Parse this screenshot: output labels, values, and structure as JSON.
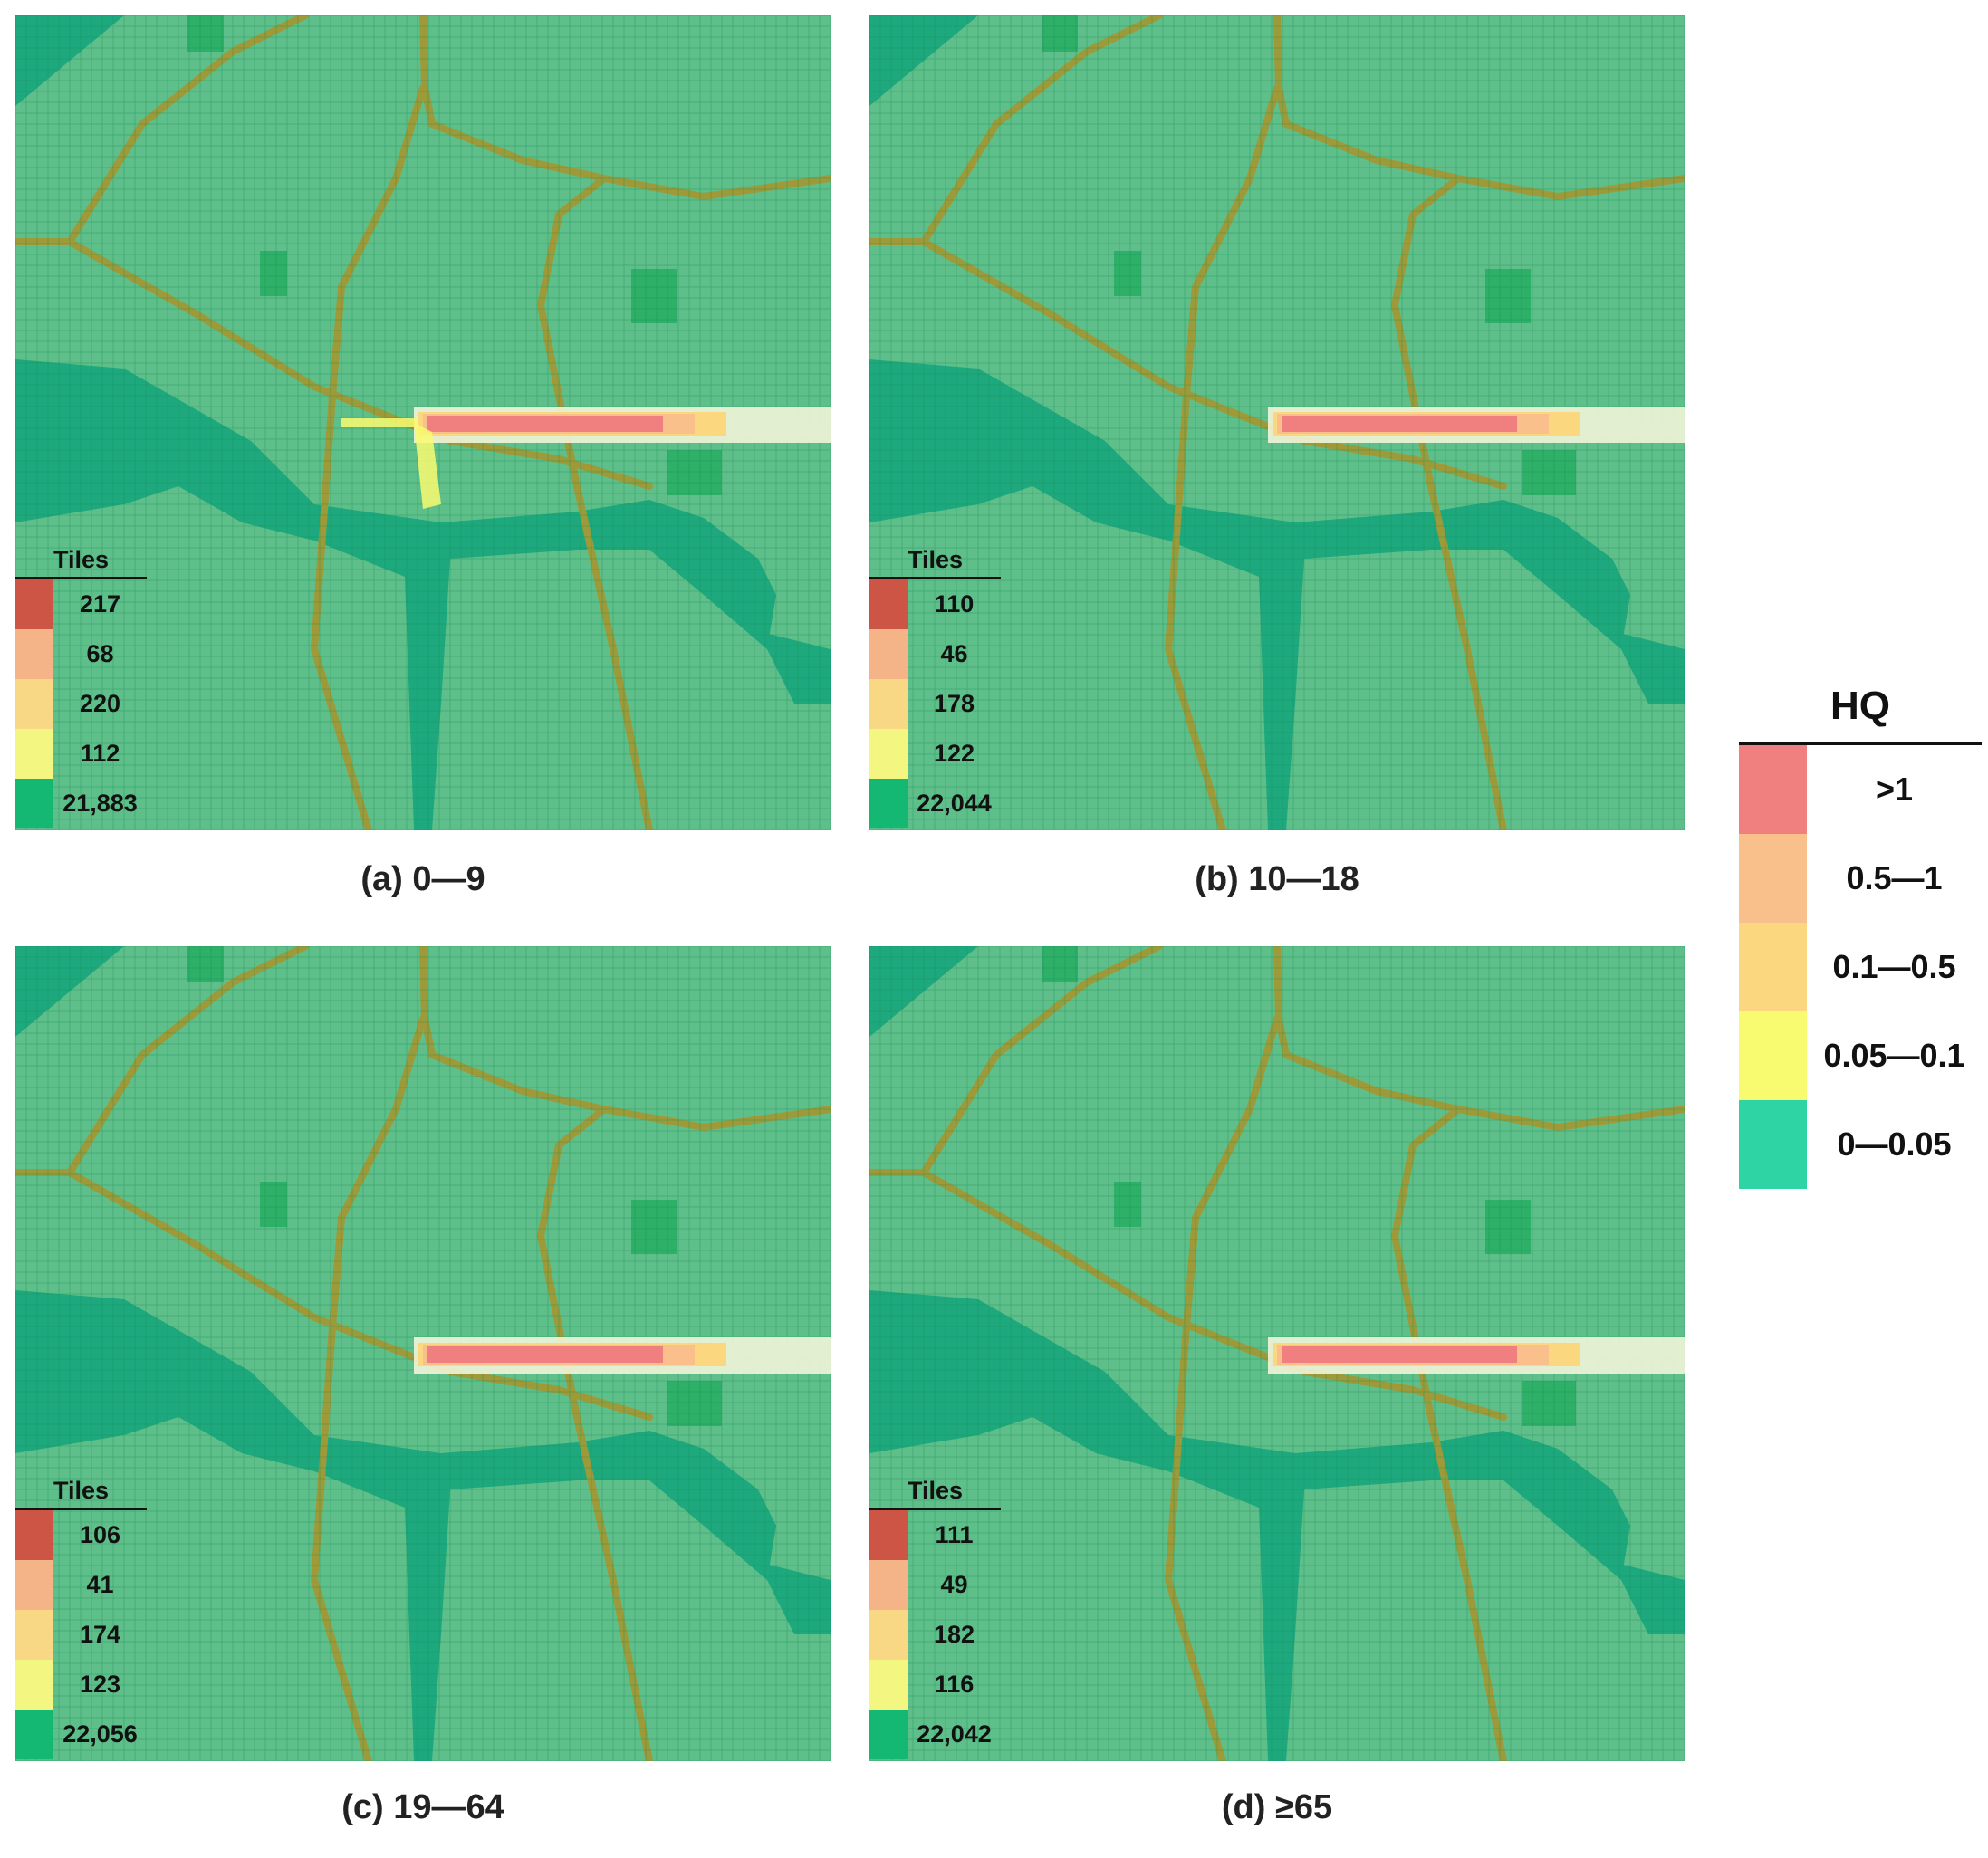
{
  "panels": [
    {
      "caption": "(a)  0—9",
      "tiles_title": "Tiles",
      "counts": [
        "217",
        "68",
        "220",
        "112",
        "21,883"
      ]
    },
    {
      "caption": "(b)  10—18",
      "tiles_title": "Tiles",
      "counts": [
        "110",
        "46",
        "178",
        "122",
        "22,044"
      ]
    },
    {
      "caption": "(c)  19—64",
      "tiles_title": "Tiles",
      "counts": [
        "106",
        "41",
        "174",
        "123",
        "22,056"
      ]
    },
    {
      "caption": "(d)  ≥65",
      "tiles_title": "Tiles",
      "counts": [
        "111",
        "49",
        "182",
        "116",
        "22,042"
      ]
    }
  ],
  "hq_legend": {
    "title": "HQ",
    "classes": [
      ">1",
      "0.5—1",
      "0.1—0.5",
      "0.05—0.1",
      "0—0.05"
    ],
    "colors": [
      "#f08080",
      "#f9c08c",
      "#fbd880",
      "#f8fa70",
      "#2ed4a4"
    ]
  },
  "tile_colors": [
    "#cc5545",
    "#f5b488",
    "#f8d884",
    "#f4f682",
    "#14b872"
  ],
  "map_colors": {
    "land": "#5fbf8a",
    "water": "#1ea87e",
    "grid": "#138f52",
    "road": "#9e9a3a",
    "park": "#2eb068"
  }
}
